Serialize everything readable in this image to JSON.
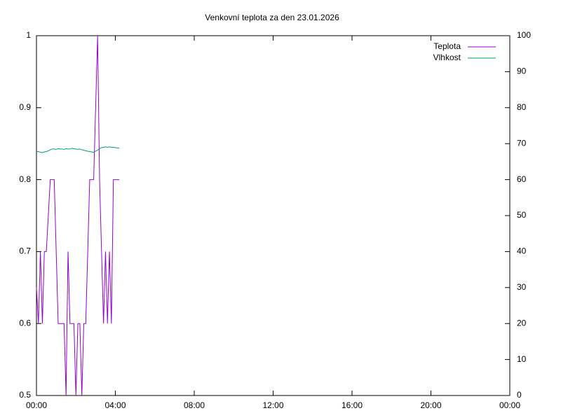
{
  "chart_data": {
    "type": "line",
    "title": "Venkovní teplota za den 23.01.2026",
    "x": [
      0.0,
      0.1,
      0.2,
      0.3,
      0.4,
      0.5,
      0.6,
      0.7,
      0.8,
      0.9,
      1.0,
      1.1,
      1.2,
      1.3,
      1.4,
      1.5,
      1.6,
      1.7,
      1.8,
      1.9,
      2.0,
      2.1,
      2.2,
      2.3,
      2.4,
      2.5,
      2.6,
      2.7,
      2.8,
      2.9,
      3.0,
      3.1,
      3.2,
      3.3,
      3.4,
      3.5,
      3.6,
      3.7,
      3.8,
      3.9,
      4.0,
      4.1,
      4.2
    ],
    "series": [
      {
        "name": "Teplota",
        "color": "#9400d3",
        "values": [
          0.65,
          0.6,
          0.7,
          0.6,
          0.7,
          0.7,
          0.75,
          0.8,
          0.8,
          0.8,
          0.7,
          0.6,
          0.6,
          0.6,
          0.6,
          0.5,
          0.7,
          0.6,
          0.6,
          0.6,
          0.5,
          0.6,
          0.6,
          0.5,
          0.6,
          0.6,
          0.7,
          0.8,
          0.8,
          0.8,
          0.9,
          1.0,
          0.8,
          0.7,
          0.6,
          0.7,
          0.6,
          0.7,
          0.6,
          0.8,
          0.8,
          0.8,
          0.8
        ]
      },
      {
        "name": "Vlhkost",
        "color": "#009e73",
        "axis": "y2",
        "values": [
          67.8,
          67.8,
          67.6,
          67.5,
          67.7,
          67.8,
          68.0,
          68.3,
          68.5,
          68.5,
          68.4,
          68.6,
          68.5,
          68.5,
          68.4,
          68.6,
          68.5,
          68.5,
          68.7,
          68.6,
          68.5,
          68.4,
          68.5,
          68.3,
          68.2,
          68.0,
          67.9,
          67.8,
          67.7,
          67.6,
          67.9,
          68.2,
          68.6,
          68.9,
          69.0,
          69.1,
          69.0,
          69.1,
          69.0,
          69.0,
          68.9,
          68.8,
          68.8
        ]
      }
    ],
    "xlim": [
      0,
      24
    ],
    "xticks": [
      {
        "value": 0,
        "label": "00:00"
      },
      {
        "value": 4,
        "label": "04:00"
      },
      {
        "value": 8,
        "label": "08:00"
      },
      {
        "value": 12,
        "label": "12:00"
      },
      {
        "value": 16,
        "label": "16:00"
      },
      {
        "value": 20,
        "label": "20:00"
      },
      {
        "value": 24,
        "label": "00:00"
      }
    ],
    "ylim": [
      0.5,
      1
    ],
    "yticks": [
      0.5,
      0.6,
      0.7,
      0.8,
      0.9,
      1
    ],
    "y2lim": [
      0,
      100
    ],
    "y2ticks": [
      0,
      10,
      20,
      30,
      40,
      50,
      60,
      70,
      80,
      90,
      100
    ],
    "legend": "top-right",
    "grid": false
  }
}
